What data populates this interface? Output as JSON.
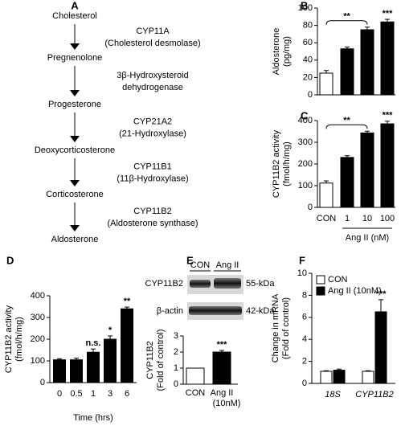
{
  "pathway": {
    "panel": "A",
    "compounds": [
      "Cholesterol",
      "Pregnenolone",
      "Progesterone",
      "Deoxycorticosterone",
      "Corticosterone",
      "Aldosterone"
    ],
    "enzymes": [
      [
        "CYP11A",
        "(Cholesterol desmolase)"
      ],
      [
        "3β-Hydroxysteroid",
        "dehydrogenase"
      ],
      [
        "CYP21A2",
        "(21-Hydroxylase)"
      ],
      [
        "CYP11B1",
        "(11β-Hydroxylase)"
      ],
      [
        "CYP11B2",
        "(Aldosterone synthase)"
      ]
    ]
  },
  "blot": {
    "lanes": [
      "CON",
      "Ang II"
    ],
    "rows": [
      {
        "protein": "CYP11B2",
        "size": "55-kDa"
      },
      {
        "protein": "β-actin",
        "size": "42-kDa"
      }
    ]
  },
  "chart_data": [
    {
      "type": "bar",
      "panel": "B",
      "ylabel": [
        "Aldosterone",
        "(pg/mg)"
      ],
      "values": [
        25,
        53,
        75,
        84
      ],
      "errors": [
        3,
        2,
        3,
        3
      ],
      "colors": [
        "#ffffff",
        "#000000",
        "#000000",
        "#000000"
      ],
      "ylim": [
        0,
        100
      ],
      "yticks": [
        0,
        20,
        40,
        60,
        80,
        100
      ],
      "annotations": [
        "**",
        "***"
      ]
    },
    {
      "type": "bar",
      "panel": "C",
      "ylabel": [
        "CYP11B2 activity",
        "(fmol/h/mg)"
      ],
      "categories": [
        "CON",
        "1",
        "10",
        "100"
      ],
      "xlabel": "Ang II (nM)",
      "values": [
        112,
        230,
        343,
        385
      ],
      "errors": [
        10,
        8,
        8,
        12
      ],
      "colors": [
        "#ffffff",
        "#000000",
        "#000000",
        "#000000"
      ],
      "ylim": [
        0,
        400
      ],
      "yticks": [
        0,
        100,
        200,
        300,
        400
      ],
      "annotations": [
        "**",
        "***"
      ]
    },
    {
      "type": "bar",
      "panel": "D",
      "ylabel": [
        "CYP11B2 activity",
        "(fmol/h/mg)"
      ],
      "categories": [
        "0",
        "0.5",
        "1",
        "3",
        "6"
      ],
      "xlabel": "Time (hrs)",
      "values": [
        105,
        105,
        140,
        200,
        340
      ],
      "errors": [
        5,
        8,
        15,
        15,
        8
      ],
      "colors": [
        "#000000",
        "#000000",
        "#000000",
        "#000000",
        "#000000"
      ],
      "ylim": [
        0,
        400
      ],
      "yticks": [
        0,
        100,
        200,
        300,
        400
      ],
      "annotations": [
        "n.s.",
        "*",
        "**"
      ]
    },
    {
      "type": "bar",
      "panel": "E",
      "ylabel": [
        "CYP11B2",
        "(Fold of control)"
      ],
      "categories": [
        [
          "CON"
        ],
        [
          "Ang II",
          "(10nM)"
        ]
      ],
      "values": [
        1,
        2
      ],
      "errors": [
        0,
        0.1
      ],
      "colors": [
        "#ffffff",
        "#000000"
      ],
      "ylim": [
        0,
        3
      ],
      "yticks": [
        0,
        1,
        2,
        3
      ],
      "annotations": [
        "***"
      ]
    },
    {
      "type": "grouped-bar",
      "panel": "F",
      "ylabel": [
        "Change in mRNA",
        "(Fold of control)"
      ],
      "categories": [
        "18S",
        "CYP11B2"
      ],
      "legend": "top-left",
      "series": [
        {
          "name": "CON",
          "color": "#ffffff",
          "values": [
            1.1,
            1.1
          ],
          "errors": [
            0.05,
            0.05
          ]
        },
        {
          "name": "Ang II (10nM)",
          "color": "#000000",
          "values": [
            1.2,
            6.5
          ],
          "errors": [
            0.1,
            1.1
          ]
        }
      ],
      "ylim": [
        0,
        10
      ],
      "yticks": [
        0,
        2,
        4,
        6,
        8,
        10
      ],
      "annotations": [
        "***"
      ]
    }
  ]
}
